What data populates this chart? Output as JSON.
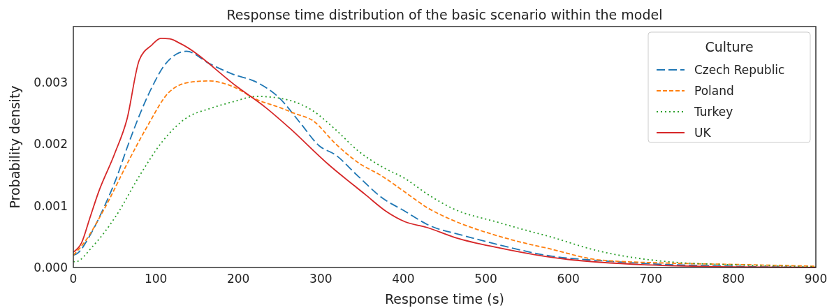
{
  "chart_data": {
    "type": "line",
    "title": "Response time distribution of the basic scenario within the model",
    "xlabel": "Response time (s)",
    "ylabel": "Probability density",
    "legend_title": "Culture",
    "legend": "top right",
    "grid": false,
    "xlim": [
      0,
      900
    ],
    "xticks": [
      0,
      100,
      200,
      300,
      400,
      500,
      600,
      700,
      800,
      900
    ],
    "ylim": [
      0,
      0.0039
    ],
    "yticks": [
      {
        "value": 0,
        "label": "0.000"
      },
      {
        "value": 0.001,
        "label": "0.001"
      },
      {
        "value": 0.002,
        "label": "0.002"
      },
      {
        "value": 0.003,
        "label": "0.003"
      }
    ],
    "series": [
      {
        "name": "Czech Republic",
        "color": "#1f77b4",
        "line_style": "longdash",
        "x": [
          0,
          4,
          21,
          38,
          52,
          66,
          80,
          95,
          112,
          137,
          165,
          193,
          222,
          250,
          275,
          298,
          318,
          345,
          374,
          402,
          430,
          472,
          515,
          572,
          650,
          700,
          800,
          900
        ],
        "values": [
          0.0002,
          0.00022,
          0.00054,
          0.001,
          0.00144,
          0.00197,
          0.00246,
          0.00291,
          0.0033,
          0.0035,
          0.0033,
          0.00313,
          0.003,
          0.00274,
          0.00234,
          0.00197,
          0.00182,
          0.00148,
          0.00113,
          0.00091,
          0.00069,
          0.00052,
          0.00037,
          0.0002,
          0.0001,
          6e-05,
          2e-05,
          0
        ]
      },
      {
        "name": "Poland",
        "color": "#ff7f0e",
        "line_style": "dashed",
        "x": [
          0,
          13,
          38,
          66,
          89,
          117,
          142,
          165,
          193,
          222,
          250,
          269,
          290,
          318,
          345,
          374,
          402,
          430,
          459,
          515,
          555,
          572,
          639,
          724,
          800,
          900
        ],
        "values": [
          0.0002,
          0.0004,
          0.00096,
          0.0017,
          0.00227,
          0.00285,
          0.003,
          0.00302,
          0.00293,
          0.00272,
          0.00259,
          0.00249,
          0.00238,
          0.002,
          0.0017,
          0.00148,
          0.00122,
          0.00096,
          0.00077,
          0.00051,
          0.00037,
          0.00032,
          0.00012,
          7e-05,
          5e-05,
          2e-05
        ]
      },
      {
        "name": "Turkey",
        "color": "#2ca02c",
        "line_style": "dotted",
        "x": [
          0,
          2,
          24,
          52,
          80,
          108,
          137,
          165,
          193,
          222,
          250,
          290,
          318,
          345,
          374,
          402,
          430,
          459,
          515,
          555,
          572,
          639,
          724,
          809,
          900
        ],
        "values": [
          0.0001,
          9e-05,
          0.00035,
          0.00084,
          0.00148,
          0.00204,
          0.00242,
          0.00257,
          0.00268,
          0.00277,
          0.00274,
          0.00254,
          0.00223,
          0.00189,
          0.00163,
          0.00144,
          0.00118,
          0.00096,
          0.00073,
          0.00058,
          0.00052,
          0.00026,
          9e-05,
          4e-05,
          1e-05
        ]
      },
      {
        "name": "UK",
        "color": "#d62728",
        "line_style": "solid",
        "x": [
          0,
          10,
          20,
          30,
          50,
          65,
          80,
          95,
          106,
          117,
          129,
          200,
          233,
          261,
          309,
          354,
          379,
          402,
          428,
          464,
          515,
          572,
          600,
          700,
          800,
          900
        ],
        "values": [
          0.00025,
          0.0004,
          0.0008,
          0.0012,
          0.00184,
          0.0024,
          0.00336,
          0.0036,
          0.00371,
          0.0037,
          0.00363,
          0.00291,
          0.00259,
          0.00227,
          0.00167,
          0.00118,
          0.00091,
          0.00074,
          0.00065,
          0.00048,
          0.00032,
          0.00018,
          0.00013,
          4e-05,
          1e-05,
          0
        ]
      }
    ]
  }
}
